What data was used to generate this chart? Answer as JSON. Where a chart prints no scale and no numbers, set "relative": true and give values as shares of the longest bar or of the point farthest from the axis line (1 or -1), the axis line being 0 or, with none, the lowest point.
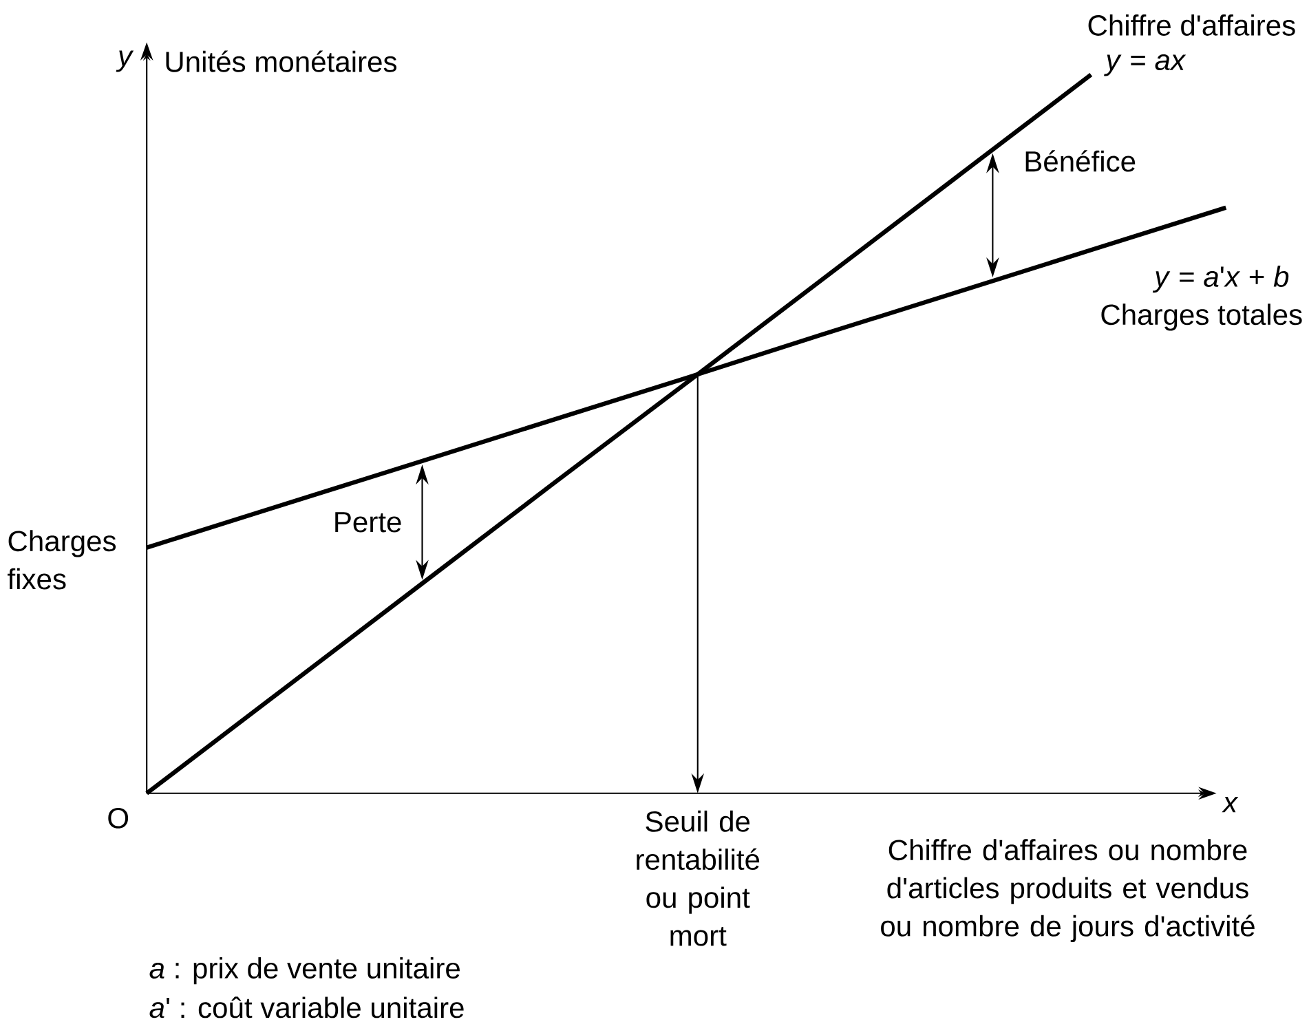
{
  "chart_data": {
    "type": "line",
    "relative": true,
    "ylabel": "Unités monétaires",
    "xlabel": "Chiffre d'affaires ou nombre d'articles produits et vendus ou nombre de jours d'activité",
    "categories": [
      null,
      null,
      null,
      null,
      null,
      null,
      null,
      null,
      null
    ],
    "series": [
      {
        "name": "Chiffre d'affaires",
        "color": "#000000",
        "values": [
          0,
          0.143,
          0.286,
          0.429,
          0.571,
          0.714,
          0.857,
          1.0,
          null
        ]
      },
      {
        "name": "Charges totales",
        "color": "#000000",
        "values": [
          0.342,
          0.401,
          0.46,
          0.519,
          0.578,
          0.638,
          0.697,
          0.756,
          0.815
        ]
      }
    ],
    "annotations": [
      "y",
      "x",
      "O",
      "*y* = *ax*",
      "*y* = *a*'*x* + *b*",
      "Charges fixes",
      "Perte",
      "Bénéfice",
      "Seuil de rentabilité ou point mort",
      "*a* : prix de vente unitaire",
      "*a*' : coût variable unitaire"
    ]
  }
}
